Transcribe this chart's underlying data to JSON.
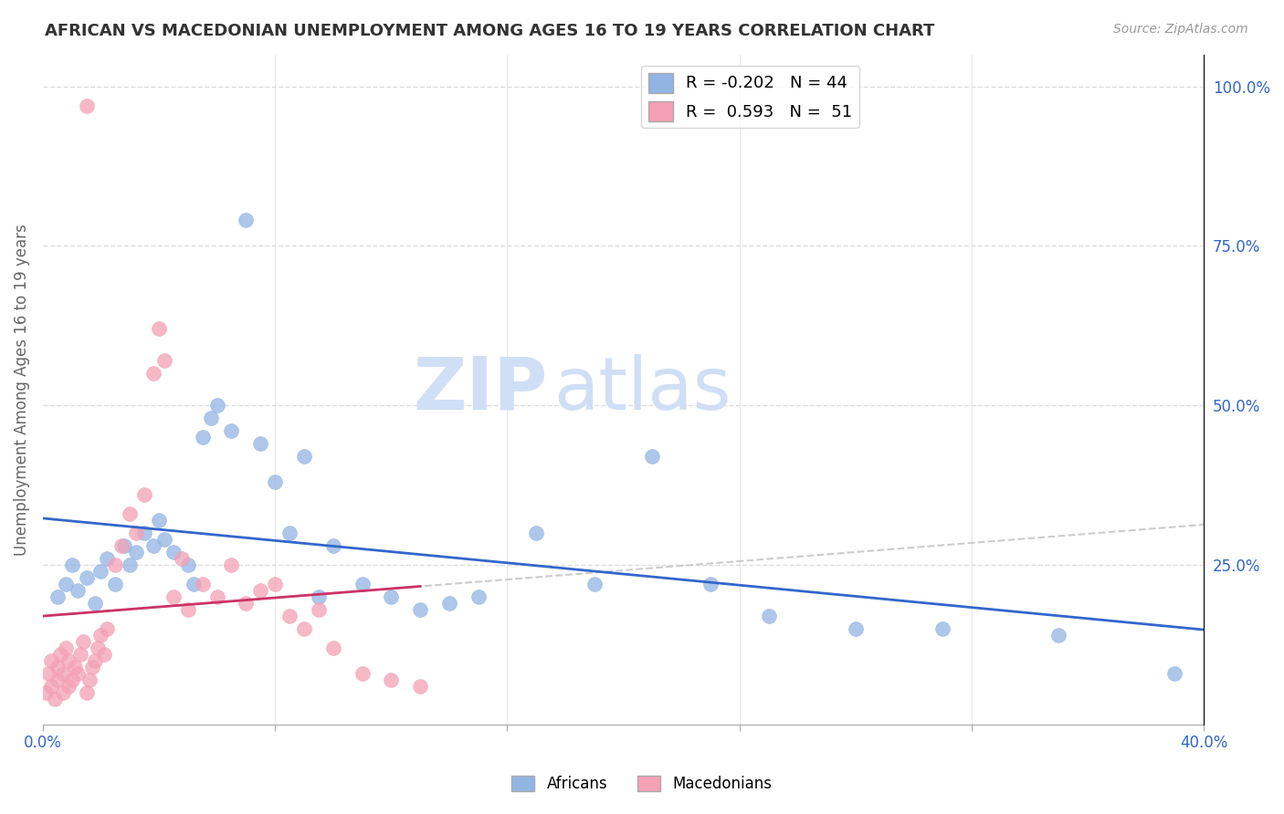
{
  "title": "AFRICAN VS MACEDONIAN UNEMPLOYMENT AMONG AGES 16 TO 19 YEARS CORRELATION CHART",
  "source": "Source: ZipAtlas.com",
  "ylabel": "Unemployment Among Ages 16 to 19 years",
  "xlim": [
    0.0,
    0.4
  ],
  "ylim": [
    0.0,
    1.05
  ],
  "african_color": "#92b4e3",
  "macedonian_color": "#f4a0b5",
  "african_line_color": "#3366cc",
  "macedonian_line_color": "#cc3366",
  "trend_line_color": "#cccccc",
  "african_R": -0.202,
  "african_N": 44,
  "macedonian_R": 0.593,
  "macedonian_N": 51,
  "africans_x": [
    0.005,
    0.008,
    0.01,
    0.012,
    0.015,
    0.018,
    0.02,
    0.022,
    0.025,
    0.028,
    0.03,
    0.032,
    0.035,
    0.038,
    0.04,
    0.042,
    0.045,
    0.05,
    0.052,
    0.055,
    0.058,
    0.06,
    0.065,
    0.07,
    0.075,
    0.08,
    0.085,
    0.09,
    0.095,
    0.1,
    0.11,
    0.12,
    0.13,
    0.14,
    0.15,
    0.17,
    0.19,
    0.21,
    0.23,
    0.25,
    0.28,
    0.31,
    0.35,
    0.39
  ],
  "africans_y": [
    0.2,
    0.22,
    0.25,
    0.21,
    0.23,
    0.19,
    0.24,
    0.26,
    0.22,
    0.28,
    0.25,
    0.27,
    0.3,
    0.28,
    0.32,
    0.29,
    0.27,
    0.25,
    0.22,
    0.45,
    0.48,
    0.5,
    0.46,
    0.79,
    0.44,
    0.38,
    0.3,
    0.42,
    0.2,
    0.28,
    0.22,
    0.2,
    0.18,
    0.19,
    0.2,
    0.3,
    0.22,
    0.42,
    0.22,
    0.17,
    0.15,
    0.15,
    0.14,
    0.08
  ],
  "macedonians_x": [
    0.001,
    0.002,
    0.003,
    0.003,
    0.004,
    0.005,
    0.005,
    0.006,
    0.007,
    0.007,
    0.008,
    0.009,
    0.009,
    0.01,
    0.011,
    0.012,
    0.013,
    0.014,
    0.015,
    0.016,
    0.017,
    0.018,
    0.019,
    0.02,
    0.021,
    0.022,
    0.025,
    0.027,
    0.03,
    0.032,
    0.035,
    0.038,
    0.04,
    0.042,
    0.045,
    0.048,
    0.05,
    0.055,
    0.06,
    0.065,
    0.07,
    0.075,
    0.08,
    0.085,
    0.09,
    0.095,
    0.1,
    0.11,
    0.12,
    0.13,
    0.015
  ],
  "macedonians_y": [
    0.05,
    0.08,
    0.06,
    0.1,
    0.04,
    0.07,
    0.09,
    0.11,
    0.05,
    0.08,
    0.12,
    0.06,
    0.1,
    0.07,
    0.09,
    0.08,
    0.11,
    0.13,
    0.05,
    0.07,
    0.09,
    0.1,
    0.12,
    0.14,
    0.11,
    0.15,
    0.25,
    0.28,
    0.33,
    0.3,
    0.36,
    0.55,
    0.62,
    0.57,
    0.2,
    0.26,
    0.18,
    0.22,
    0.2,
    0.25,
    0.19,
    0.21,
    0.22,
    0.17,
    0.15,
    0.18,
    0.12,
    0.08,
    0.07,
    0.06,
    0.97
  ],
  "watermark_zip": "ZIP",
  "watermark_atlas": "atlas",
  "watermark_color": "#d0dff5",
  "background_color": "#ffffff",
  "grid_color": "#dddddd"
}
